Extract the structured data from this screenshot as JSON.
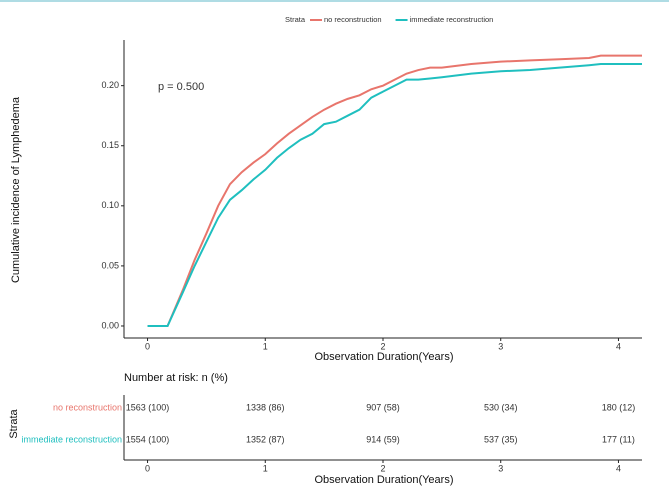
{
  "chart_data": {
    "type": "line",
    "step_like": true,
    "legend_title": "Strata",
    "ylabel": "Cumulative incidence of Lymphedema",
    "xlabel": "Observation Duration(Years)",
    "annotation": "p = 0.500",
    "xlim": [
      -0.2,
      4.2
    ],
    "ylim": [
      -0.01,
      0.238
    ],
    "xticks": [
      0,
      1,
      2,
      3,
      4
    ],
    "yticks": [
      {
        "value": 0,
        "label": "0.00"
      },
      {
        "value": 0.05,
        "label": "0.05"
      },
      {
        "value": 0.1,
        "label": "0.10"
      },
      {
        "value": 0.15,
        "label": "0.15"
      },
      {
        "value": 0.2,
        "label": "0.20"
      }
    ],
    "grid": false,
    "x": [
      0,
      0.17,
      0.3,
      0.4,
      0.5,
      0.6,
      0.7,
      0.8,
      0.9,
      1.0,
      1.1,
      1.2,
      1.3,
      1.4,
      1.5,
      1.6,
      1.7,
      1.8,
      1.9,
      2.0,
      2.1,
      2.2,
      2.3,
      2.4,
      2.5,
      2.75,
      3.0,
      3.25,
      3.5,
      3.75,
      3.85,
      4.2
    ],
    "series": [
      {
        "name": "no reconstruction",
        "color": "#e8756c",
        "values": [
          0,
          0,
          0.03,
          0.055,
          0.077,
          0.1,
          0.118,
          0.128,
          0.136,
          0.143,
          0.152,
          0.16,
          0.167,
          0.174,
          0.18,
          0.185,
          0.189,
          0.192,
          0.197,
          0.2,
          0.205,
          0.21,
          0.213,
          0.215,
          0.215,
          0.218,
          0.22,
          0.221,
          0.222,
          0.223,
          0.225,
          0.225
        ]
      },
      {
        "name": "immediate reconstruction",
        "color": "#1fbfbf",
        "values": [
          0,
          0,
          0.028,
          0.05,
          0.07,
          0.09,
          0.105,
          0.113,
          0.122,
          0.13,
          0.14,
          0.148,
          0.155,
          0.16,
          0.168,
          0.17,
          0.175,
          0.18,
          0.19,
          0.195,
          0.2,
          0.205,
          0.205,
          0.206,
          0.207,
          0.21,
          0.212,
          0.213,
          0.215,
          0.217,
          0.218,
          0.218
        ]
      }
    ],
    "risk_table": {
      "title": "Number at risk: n (%)",
      "ylabel": "Strata",
      "xlabel": "Observation Duration(Years)",
      "times": [
        0,
        1,
        2,
        3,
        4
      ],
      "rows": [
        {
          "name": "no reconstruction",
          "color": "#e8756c",
          "labels": [
            "1563 (100)",
            "1338 (86)",
            "907 (58)",
            "530 (34)",
            "180 (12)"
          ]
        },
        {
          "name": "immediate reconstruction",
          "color": "#1fbfbf",
          "labels": [
            "1554 (100)",
            "1352 (87)",
            "914 (59)",
            "537 (35)",
            "177 (11)"
          ]
        }
      ]
    }
  }
}
